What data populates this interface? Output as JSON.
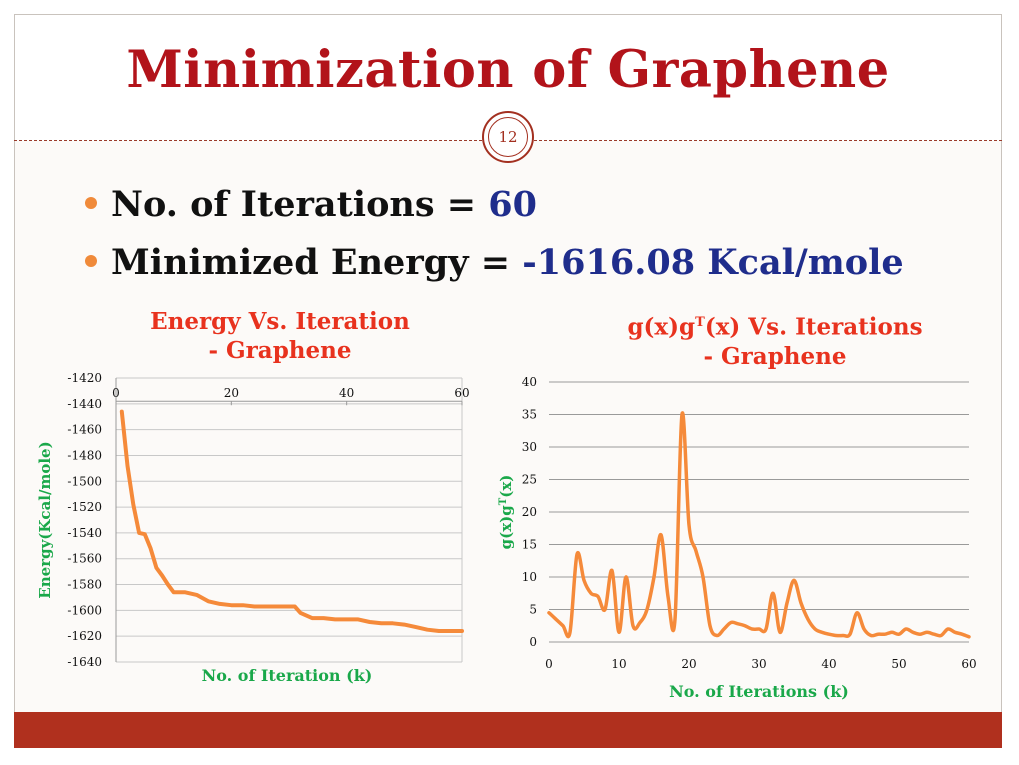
{
  "slide": {
    "title": "Minimization of Graphene",
    "page_number": "12",
    "bullets": [
      {
        "label": "No. of Iterations = ",
        "value": "60"
      },
      {
        "label": "Minimized Energy = ",
        "value": "-1616.08 Kcal/mole"
      }
    ],
    "colors": {
      "title": "#b2131a",
      "bullet_value": "#1f2d8c",
      "series": "#f58a3a",
      "chart_title": "#e8321e",
      "axis_label": "#1aa84a",
      "bottom_bar": "#b0301e"
    }
  },
  "chart_data": [
    {
      "type": "line",
      "title_line1": "Energy Vs. Iteration",
      "title_line2": "- Graphene",
      "xlabel": "No. of Iteration (k)",
      "ylabel": "Energy(Kcal/mole)",
      "xlim": [
        0,
        60
      ],
      "ylim": [
        -1640,
        -1420
      ],
      "x_ticks": [
        "0",
        "20",
        "40",
        "60"
      ],
      "y_ticks": [
        "-1420",
        "-1440",
        "-1460",
        "-1480",
        "-1500",
        "-1520",
        "-1540",
        "-1560",
        "-1580",
        "-1600",
        "-1620",
        "-1640"
      ],
      "x_axis_position": "top",
      "grid": true,
      "series": [
        {
          "x": [
            1,
            2,
            3,
            4,
            5,
            6,
            7,
            8,
            9,
            10,
            11,
            12,
            14,
            16,
            18,
            20,
            22,
            24,
            26,
            28,
            30,
            31,
            32,
            34,
            36,
            38,
            40,
            42,
            44,
            46,
            48,
            50,
            52,
            54,
            56,
            58,
            60
          ],
          "y": [
            -1446,
            -1488,
            -1518,
            -1540,
            -1541,
            -1552,
            -1567,
            -1573,
            -1580,
            -1586,
            -1586,
            -1586,
            -1588,
            -1593,
            -1595,
            -1596,
            -1596,
            -1597,
            -1597,
            -1597,
            -1597,
            -1597,
            -1602,
            -1606,
            -1606,
            -1607,
            -1607,
            -1607,
            -1609,
            -1610,
            -1610,
            -1611,
            -1613,
            -1615,
            -1616,
            -1616,
            -1616
          ]
        }
      ]
    },
    {
      "type": "line",
      "title_line1": "g(x)g",
      "title_sup": "T",
      "title_line1_rest": "(x) Vs. Iterations",
      "title_line2": "- Graphene",
      "xlabel": "No. of Iterations (k)",
      "ylabel_main": "g(x)g",
      "ylabel_sup": "T",
      "ylabel_rest": "(x)",
      "xlim": [
        0,
        60
      ],
      "ylim": [
        0,
        40
      ],
      "x_ticks": [
        "0",
        "10",
        "20",
        "30",
        "40",
        "50",
        "60"
      ],
      "y_ticks": [
        "0",
        "5",
        "10",
        "15",
        "20",
        "25",
        "30",
        "35",
        "40"
      ],
      "grid": true,
      "series": [
        {
          "x": [
            0,
            1,
            2,
            3,
            4,
            5,
            6,
            7,
            8,
            9,
            10,
            11,
            12,
            13,
            14,
            15,
            16,
            17,
            18,
            19,
            20,
            21,
            22,
            23,
            24,
            25,
            26,
            27,
            28,
            29,
            30,
            31,
            32,
            33,
            34,
            35,
            36,
            37,
            38,
            39,
            40,
            41,
            42,
            43,
            44,
            45,
            46,
            47,
            48,
            49,
            50,
            51,
            52,
            53,
            54,
            55,
            56,
            57,
            58,
            59,
            60
          ],
          "y": [
            4.5,
            3.5,
            2.5,
            1.5,
            13.5,
            9.5,
            7.5,
            7.0,
            5.0,
            11.0,
            1.5,
            10.0,
            2.5,
            3.0,
            5.0,
            10.0,
            16.5,
            7.0,
            3.5,
            35.0,
            18.0,
            14.0,
            10.0,
            2.5,
            1.0,
            2.0,
            3.0,
            2.8,
            2.5,
            2.0,
            2.0,
            2.0,
            7.5,
            1.5,
            6.0,
            9.5,
            6.0,
            3.5,
            2.0,
            1.5,
            1.2,
            1.0,
            1.0,
            1.2,
            4.5,
            2.0,
            1.0,
            1.2,
            1.2,
            1.5,
            1.2,
            2.0,
            1.5,
            1.2,
            1.5,
            1.2,
            1.0,
            2.0,
            1.5,
            1.2,
            0.8
          ]
        }
      ]
    }
  ]
}
